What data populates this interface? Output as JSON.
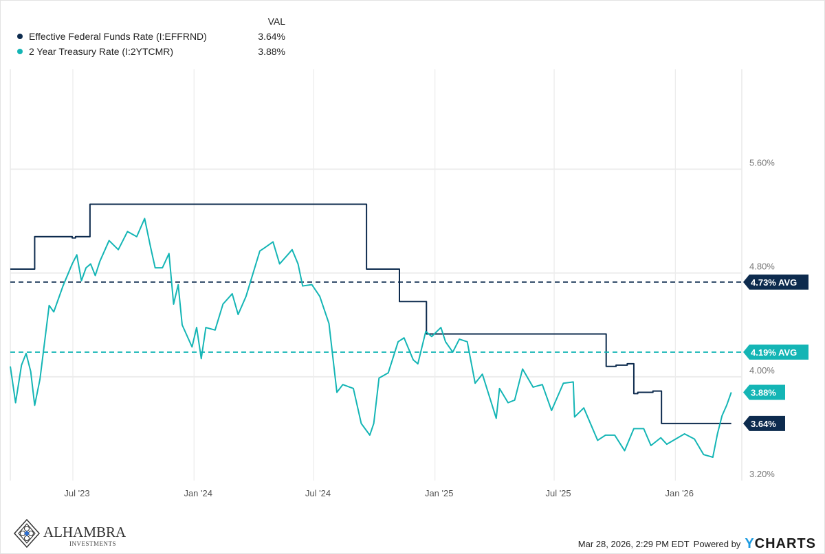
{
  "legend": {
    "header": "VAL",
    "items": [
      {
        "label": "Effective Federal Funds Rate (I:EFFRND)",
        "value": "3.64%",
        "color": "#0d2b4e"
      },
      {
        "label": "2 Year Treasury Rate (I:2YTCMR)",
        "value": "3.88%",
        "color": "#14b5b5"
      }
    ]
  },
  "chart_data": {
    "type": "line",
    "ylim": [
      3.2,
      6.37
    ],
    "xlim": [
      "2023-03-28",
      "2026-04-12"
    ],
    "grid": true,
    "legend_placement": "top-left",
    "y_ticks": [
      {
        "value": 5.6,
        "label": "5.60%"
      },
      {
        "value": 4.8,
        "label": "4.80%"
      },
      {
        "value": 4.0,
        "label": "4.00%"
      },
      {
        "value": 3.2,
        "label": "3.20%"
      }
    ],
    "x_ticks": [
      {
        "date": "2023-07-01",
        "label": "Jul '23"
      },
      {
        "date": "2024-01-01",
        "label": "Jan '24"
      },
      {
        "date": "2024-07-01",
        "label": "Jul '24"
      },
      {
        "date": "2025-01-01",
        "label": "Jan '25"
      },
      {
        "date": "2025-07-01",
        "label": "Jul '25"
      },
      {
        "date": "2026-01-01",
        "label": "Jan '26"
      }
    ],
    "series": [
      {
        "name": "Effective Federal Funds Rate (I:EFFRND)",
        "color": "#0d2b4e",
        "step": true,
        "average": 4.73,
        "average_label": "4.73% AVG",
        "last_label": "3.64%",
        "points": [
          [
            "2023-03-28",
            4.83
          ],
          [
            "2023-05-04",
            5.08
          ],
          [
            "2023-06-30",
            5.07
          ],
          [
            "2023-07-05",
            5.08
          ],
          [
            "2023-07-27",
            5.33
          ],
          [
            "2024-09-19",
            4.83
          ],
          [
            "2024-11-08",
            4.58
          ],
          [
            "2024-12-19",
            4.33
          ],
          [
            "2025-09-18",
            4.08
          ],
          [
            "2025-10-03",
            4.09
          ],
          [
            "2025-10-20",
            4.1
          ],
          [
            "2025-10-30",
            3.87
          ],
          [
            "2025-11-05",
            3.88
          ],
          [
            "2025-11-28",
            3.89
          ],
          [
            "2025-12-11",
            3.64
          ],
          [
            "2026-03-27",
            3.64
          ]
        ]
      },
      {
        "name": "2 Year Treasury Rate (I:2YTCMR)",
        "color": "#14b5b5",
        "average": 4.19,
        "average_label": "4.19% AVG",
        "last_label": "3.88%",
        "points": [
          [
            "2023-03-28",
            4.08
          ],
          [
            "2023-04-05",
            3.8
          ],
          [
            "2023-04-14",
            4.09
          ],
          [
            "2023-04-21",
            4.18
          ],
          [
            "2023-04-28",
            4.04
          ],
          [
            "2023-05-04",
            3.78
          ],
          [
            "2023-05-12",
            3.98
          ],
          [
            "2023-05-26",
            4.55
          ],
          [
            "2023-06-02",
            4.5
          ],
          [
            "2023-06-16",
            4.7
          ],
          [
            "2023-06-30",
            4.87
          ],
          [
            "2023-07-07",
            4.94
          ],
          [
            "2023-07-14",
            4.74
          ],
          [
            "2023-07-21",
            4.84
          ],
          [
            "2023-07-28",
            4.87
          ],
          [
            "2023-08-04",
            4.78
          ],
          [
            "2023-08-11",
            4.89
          ],
          [
            "2023-08-25",
            5.05
          ],
          [
            "2023-09-08",
            4.98
          ],
          [
            "2023-09-22",
            5.12
          ],
          [
            "2023-10-06",
            5.08
          ],
          [
            "2023-10-18",
            5.22
          ],
          [
            "2023-10-27",
            5.0
          ],
          [
            "2023-11-03",
            4.84
          ],
          [
            "2023-11-14",
            4.84
          ],
          [
            "2023-11-24",
            4.95
          ],
          [
            "2023-12-01",
            4.56
          ],
          [
            "2023-12-08",
            4.71
          ],
          [
            "2023-12-14",
            4.4
          ],
          [
            "2023-12-29",
            4.23
          ],
          [
            "2024-01-05",
            4.38
          ],
          [
            "2024-01-12",
            4.14
          ],
          [
            "2024-01-19",
            4.38
          ],
          [
            "2024-02-02",
            4.36
          ],
          [
            "2024-02-14",
            4.56
          ],
          [
            "2024-02-28",
            4.64
          ],
          [
            "2024-03-08",
            4.48
          ],
          [
            "2024-03-20",
            4.62
          ],
          [
            "2024-04-10",
            4.97
          ],
          [
            "2024-04-16",
            4.99
          ],
          [
            "2024-04-30",
            5.04
          ],
          [
            "2024-05-10",
            4.87
          ],
          [
            "2024-05-24",
            4.95
          ],
          [
            "2024-05-29",
            4.98
          ],
          [
            "2024-06-07",
            4.87
          ],
          [
            "2024-06-14",
            4.7
          ],
          [
            "2024-06-28",
            4.71
          ],
          [
            "2024-07-10",
            4.62
          ],
          [
            "2024-07-24",
            4.41
          ],
          [
            "2024-08-05",
            3.88
          ],
          [
            "2024-08-14",
            3.94
          ],
          [
            "2024-08-30",
            3.91
          ],
          [
            "2024-09-11",
            3.64
          ],
          [
            "2024-09-24",
            3.55
          ],
          [
            "2024-09-30",
            3.64
          ],
          [
            "2024-10-08",
            3.99
          ],
          [
            "2024-10-22",
            4.03
          ],
          [
            "2024-11-06",
            4.27
          ],
          [
            "2024-11-15",
            4.3
          ],
          [
            "2024-11-29",
            4.13
          ],
          [
            "2024-12-06",
            4.1
          ],
          [
            "2024-12-18",
            4.35
          ],
          [
            "2024-12-27",
            4.31
          ],
          [
            "2025-01-10",
            4.38
          ],
          [
            "2025-01-17",
            4.27
          ],
          [
            "2025-01-28",
            4.19
          ],
          [
            "2025-02-07",
            4.29
          ],
          [
            "2025-02-19",
            4.27
          ],
          [
            "2025-03-03",
            3.95
          ],
          [
            "2025-03-14",
            4.02
          ],
          [
            "2025-04-04",
            3.68
          ],
          [
            "2025-04-09",
            3.91
          ],
          [
            "2025-04-22",
            3.8
          ],
          [
            "2025-05-02",
            3.82
          ],
          [
            "2025-05-14",
            4.06
          ],
          [
            "2025-05-30",
            3.92
          ],
          [
            "2025-06-13",
            3.94
          ],
          [
            "2025-06-27",
            3.74
          ],
          [
            "2025-07-15",
            3.95
          ],
          [
            "2025-07-30",
            3.96
          ],
          [
            "2025-08-01",
            3.69
          ],
          [
            "2025-08-15",
            3.76
          ],
          [
            "2025-09-05",
            3.51
          ],
          [
            "2025-09-17",
            3.55
          ],
          [
            "2025-10-01",
            3.55
          ],
          [
            "2025-10-16",
            3.43
          ],
          [
            "2025-10-30",
            3.6
          ],
          [
            "2025-11-14",
            3.6
          ],
          [
            "2025-11-25",
            3.47
          ],
          [
            "2025-12-10",
            3.53
          ],
          [
            "2025-12-19",
            3.48
          ],
          [
            "2026-01-15",
            3.56
          ],
          [
            "2026-01-30",
            3.52
          ],
          [
            "2026-02-13",
            3.4
          ],
          [
            "2026-02-27",
            3.38
          ],
          [
            "2026-03-06",
            3.56
          ],
          [
            "2026-03-13",
            3.7
          ],
          [
            "2026-03-20",
            3.78
          ],
          [
            "2026-03-27",
            3.88
          ]
        ]
      }
    ]
  },
  "footer": {
    "logo_name": "ALHAMBRA",
    "logo_sub": "INVESTMENTS",
    "timestamp": "Mar 28, 2026, 2:29 PM EDT",
    "powered_by": "Powered by",
    "brand_y": "Y",
    "brand_rest": "CHARTS"
  }
}
